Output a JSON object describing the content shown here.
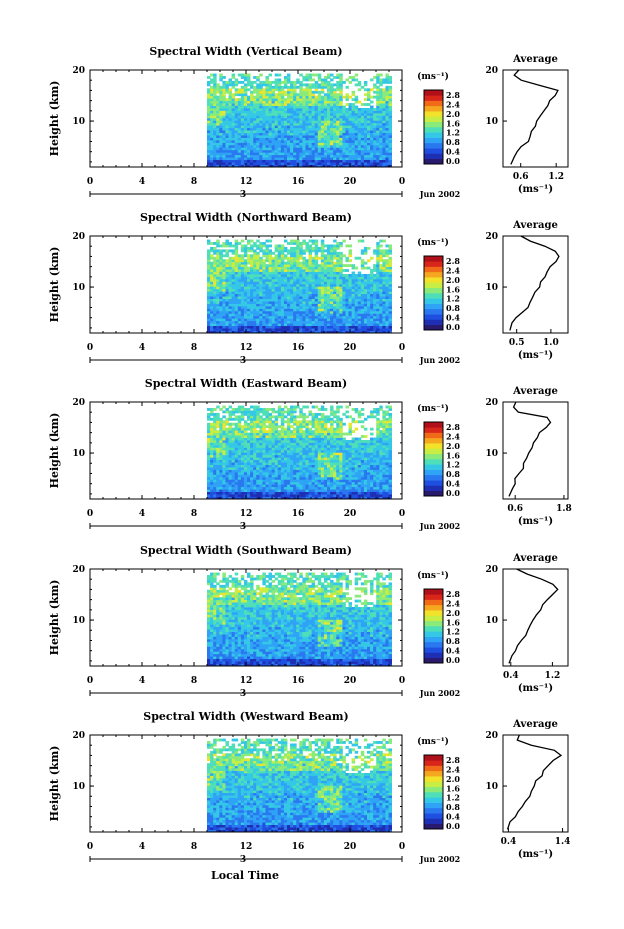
{
  "figure": {
    "date_label": "Jun 2002",
    "x_axis_label": "Local Time",
    "day_label": "3",
    "avg_title": "Average",
    "unit_label": "(ms⁻¹)",
    "ylabel": "Height (km)",
    "colorscale": [
      "#2a1a6e",
      "#1f2fb4",
      "#1f4fe0",
      "#2a78f0",
      "#2fa3f5",
      "#35c8e6",
      "#4fdfb8",
      "#8aea7a",
      "#c8ee45",
      "#f2e22a",
      "#f5a81f",
      "#f06a18",
      "#d8261a",
      "#b0101a"
    ]
  },
  "chart_data": [
    {
      "type": "heatmap",
      "title": "Spectral Width (Vertical Beam)",
      "xlabel": "Local Time",
      "ylabel": "Height (km)",
      "xlim": [
        0,
        24
      ],
      "ylim": [
        1,
        20
      ],
      "x_ticks": [
        "0",
        "4",
        "8",
        "12",
        "16",
        "20",
        "0"
      ],
      "y_ticks": [
        "10",
        "20"
      ],
      "data_start_hour": 9,
      "colorbar": {
        "label": "(ms⁻¹)",
        "ticks": [
          "0.0",
          "0.4",
          "0.8",
          "1.2",
          "1.6",
          "2.0",
          "2.4",
          "2.8"
        ],
        "range": [
          0,
          2.8
        ]
      },
      "average_profile": {
        "title": "Average",
        "xlabel": "(ms⁻¹)",
        "x_ticks": [
          "0.6",
          "1.2"
        ],
        "xlim": [
          0.3,
          1.4
        ],
        "heights": [
          1.5,
          3,
          4,
          5,
          6,
          7,
          8,
          9,
          10,
          11,
          12,
          13,
          14,
          15,
          16,
          17,
          18,
          19,
          20
        ],
        "values": [
          0.45,
          0.48,
          0.55,
          0.62,
          0.72,
          0.75,
          0.8,
          0.85,
          0.88,
          0.92,
          1.0,
          1.05,
          1.1,
          1.18,
          1.25,
          0.9,
          0.6,
          0.5,
          0.55
        ]
      }
    },
    {
      "type": "heatmap",
      "title": "Spectral Width (Northward Beam)",
      "xlabel": "Local Time",
      "ylabel": "Height (km)",
      "xlim": [
        0,
        24
      ],
      "ylim": [
        1,
        20
      ],
      "x_ticks": [
        "0",
        "4",
        "8",
        "12",
        "16",
        "20",
        "0"
      ],
      "y_ticks": [
        "10",
        "20"
      ],
      "data_start_hour": 9,
      "colorbar": {
        "label": "(ms⁻¹)",
        "ticks": [
          "0.0",
          "0.4",
          "0.8",
          "1.2",
          "1.6",
          "2.0",
          "2.4",
          "2.8"
        ],
        "range": [
          0,
          2.8
        ]
      },
      "average_profile": {
        "title": "Average",
        "xlabel": "(ms⁻¹)",
        "x_ticks": [
          "0.5",
          "1.0"
        ],
        "xlim": [
          0.3,
          1.25
        ],
        "heights": [
          1.5,
          3,
          4,
          5,
          6,
          7,
          8,
          9,
          10,
          11,
          12,
          13,
          14,
          15,
          16,
          17,
          18,
          19,
          20
        ],
        "values": [
          0.4,
          0.45,
          0.5,
          0.58,
          0.65,
          0.7,
          0.75,
          0.78,
          0.82,
          0.86,
          0.9,
          0.95,
          1.0,
          1.08,
          1.12,
          1.05,
          0.9,
          0.7,
          0.55
        ]
      }
    },
    {
      "type": "heatmap",
      "title": "Spectral Width (Eastward Beam)",
      "xlabel": "Local Time",
      "ylabel": "Height (km)",
      "xlim": [
        0,
        24
      ],
      "ylim": [
        1,
        20
      ],
      "x_ticks": [
        "0",
        "4",
        "8",
        "12",
        "16",
        "20",
        "0"
      ],
      "y_ticks": [
        "10",
        "20"
      ],
      "data_start_hour": 9,
      "colorbar": {
        "label": "(ms⁻¹)",
        "ticks": [
          "0.0",
          "0.4",
          "0.8",
          "1.2",
          "1.6",
          "2.0",
          "2.4",
          "2.8"
        ],
        "range": [
          0,
          2.8
        ]
      },
      "average_profile": {
        "title": "Average",
        "xlabel": "(ms⁻¹)",
        "x_ticks": [
          "0.6",
          "1.8"
        ],
        "xlim": [
          0.3,
          1.9
        ],
        "heights": [
          1.5,
          3,
          4,
          5,
          6,
          7,
          8,
          9,
          10,
          11,
          12,
          13,
          14,
          15,
          16,
          17,
          18,
          19,
          20
        ],
        "values": [
          0.45,
          0.5,
          0.58,
          0.62,
          0.7,
          0.78,
          0.82,
          0.9,
          0.95,
          1.0,
          1.05,
          1.12,
          1.2,
          1.35,
          1.5,
          1.4,
          0.7,
          0.55,
          0.6
        ]
      }
    },
    {
      "type": "heatmap",
      "title": "Spectral Width (Southward Beam)",
      "xlabel": "Local Time",
      "ylabel": "Height (km)",
      "xlim": [
        0,
        24
      ],
      "ylim": [
        1,
        20
      ],
      "x_ticks": [
        "0",
        "4",
        "8",
        "12",
        "16",
        "20",
        "0"
      ],
      "y_ticks": [
        "10",
        "20"
      ],
      "data_start_hour": 9,
      "colorbar": {
        "label": "(ms⁻¹)",
        "ticks": [
          "0.0",
          "0.4",
          "0.8",
          "1.2",
          "1.6",
          "2.0",
          "2.4",
          "2.8"
        ],
        "range": [
          0,
          2.8
        ]
      },
      "average_profile": {
        "title": "Average",
        "xlabel": "(ms⁻¹)",
        "x_ticks": [
          "0.4",
          "1.2"
        ],
        "xlim": [
          0.25,
          1.5
        ],
        "heights": [
          1.5,
          3,
          4,
          5,
          6,
          7,
          8,
          9,
          10,
          11,
          12,
          13,
          14,
          15,
          16,
          17,
          18,
          19,
          20
        ],
        "values": [
          0.35,
          0.4,
          0.5,
          0.55,
          0.62,
          0.68,
          0.72,
          0.78,
          0.82,
          0.88,
          0.95,
          1.0,
          1.1,
          1.2,
          1.3,
          1.2,
          1.0,
          0.7,
          0.5
        ]
      }
    },
    {
      "type": "heatmap",
      "title": "Spectral Width (Westward Beam)",
      "xlabel": "Local Time",
      "ylabel": "Height (km)",
      "xlim": [
        0,
        24
      ],
      "ylim": [
        1,
        20
      ],
      "x_ticks": [
        "0",
        "4",
        "8",
        "12",
        "16",
        "20",
        "0"
      ],
      "y_ticks": [
        "10",
        "20"
      ],
      "data_start_hour": 9,
      "colorbar": {
        "label": "(ms⁻¹)",
        "ticks": [
          "0.0",
          "0.4",
          "0.8",
          "1.2",
          "1.6",
          "2.0",
          "2.4",
          "2.8"
        ],
        "range": [
          0,
          2.8
        ]
      },
      "average_profile": {
        "title": "Average",
        "xlabel": "(ms⁻¹)",
        "x_ticks": [
          "0.4",
          "1.4"
        ],
        "xlim": [
          0.3,
          1.5
        ],
        "heights": [
          1.5,
          3,
          4,
          5,
          6,
          7,
          8,
          9,
          10,
          11,
          12,
          13,
          14,
          15,
          16,
          17,
          18,
          19,
          20
        ],
        "values": [
          0.4,
          0.45,
          0.52,
          0.58,
          0.65,
          0.72,
          0.78,
          0.82,
          0.88,
          0.92,
          1.0,
          1.05,
          1.12,
          1.22,
          1.35,
          1.25,
          0.8,
          0.55,
          0.6
        ]
      }
    }
  ]
}
